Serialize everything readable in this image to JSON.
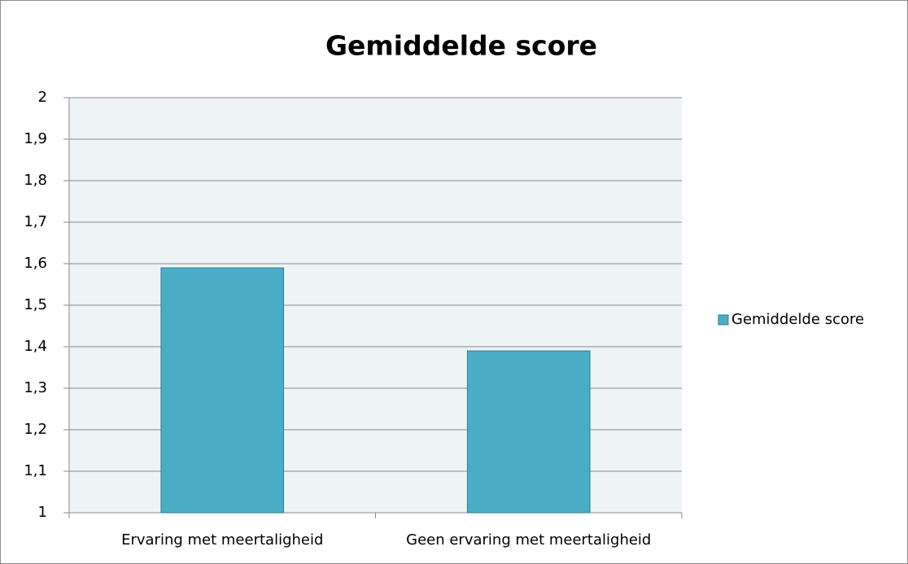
{
  "chart_data": {
    "type": "bar",
    "title": "Gemiddelde score",
    "categories": [
      "Ervaring met meertaligheid",
      "Geen ervaring met meertaligheid"
    ],
    "series": [
      {
        "name": "Gemiddelde score",
        "color": "#4bacc6",
        "values": [
          1.59,
          1.39
        ]
      }
    ],
    "ylim": [
      1,
      2
    ],
    "yticks": [
      1,
      {
        "value": 1.1,
        "label": "1,1"
      },
      {
        "value": 1.2,
        "label": "1,2"
      },
      {
        "value": 1.3,
        "label": "1,3"
      },
      {
        "value": 1.4,
        "label": "1,4"
      },
      {
        "value": 1.5,
        "label": "1,5"
      },
      {
        "value": 1.6,
        "label": "1,6"
      },
      {
        "value": 1.7,
        "label": "1,7"
      },
      {
        "value": 1.8,
        "label": "1,8"
      },
      {
        "value": 1.9,
        "label": "1,9"
      },
      2
    ],
    "grid": true,
    "legend": "right"
  }
}
